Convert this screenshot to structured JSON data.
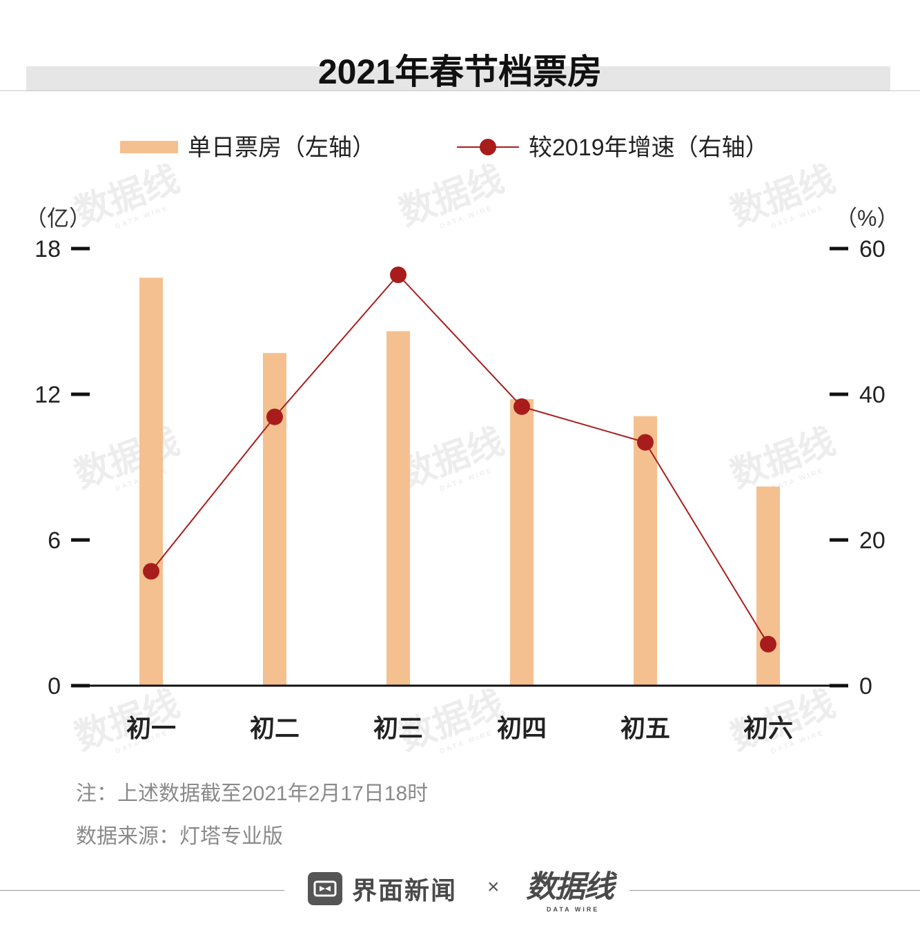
{
  "title": "2021年春节档票房",
  "legend": {
    "bar_label": "单日票房（左轴）",
    "line_label": "较2019年增速（右轴）"
  },
  "axes": {
    "left_unit": "（亿）",
    "right_unit": "（%）"
  },
  "notes": {
    "note": "注：上述数据截至2021年2月17日18时",
    "source": "数据来源：灯塔专业版"
  },
  "footer": {
    "brand_name": "界面新闻",
    "separator": "×",
    "brand2_name": "数据线",
    "brand2_sub": "DATA WIRE"
  },
  "watermark": {
    "text": "数据线",
    "sub": "DATA WIRE"
  },
  "colors": {
    "bar": "#f5c08f",
    "line": "#a71d1d",
    "point": "#a91c1c",
    "axis": "#111111"
  },
  "chart_data": {
    "type": "bar",
    "categories": [
      "初一",
      "初二",
      "初三",
      "初四",
      "初五",
      "初六"
    ],
    "series": [
      {
        "name": "单日票房（左轴）",
        "type": "bar",
        "axis": "left",
        "values": [
          16.8,
          13.7,
          14.6,
          11.8,
          11.1,
          8.2
        ]
      },
      {
        "name": "较2019年增速（右轴）",
        "type": "line",
        "axis": "right",
        "values": [
          15.7,
          36.9,
          56.4,
          38.3,
          33.4,
          5.7
        ]
      }
    ],
    "left_axis": {
      "ylim": [
        0,
        18
      ],
      "ticks": [
        "0",
        "6",
        "12",
        "18"
      ]
    },
    "right_axis": {
      "ylim": [
        0,
        60
      ],
      "ticks": [
        "0",
        "20",
        "40",
        "60"
      ]
    },
    "legend_position": "top"
  }
}
